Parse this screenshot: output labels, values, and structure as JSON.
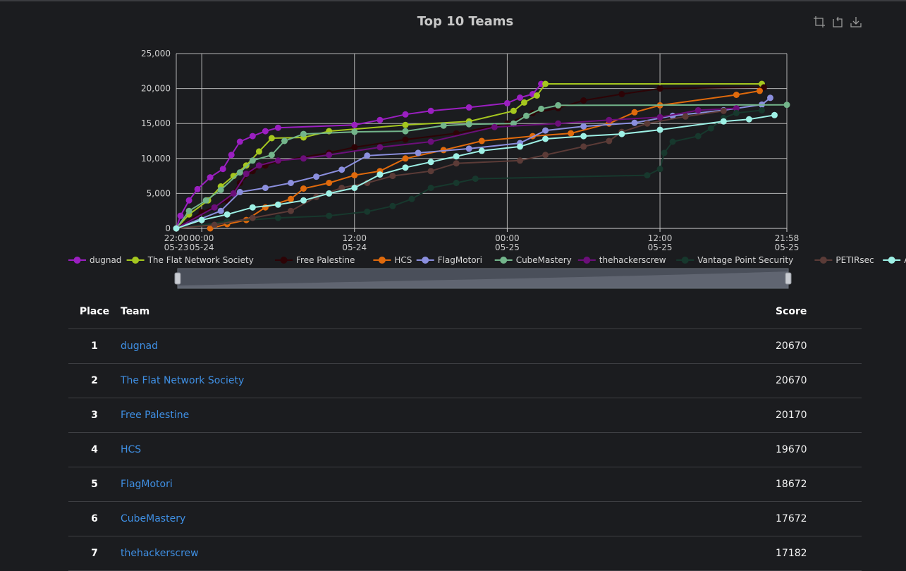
{
  "chart_data": {
    "type": "line",
    "title": "Top 10 Teams",
    "ylim": [
      0,
      25000
    ],
    "y_ticks": [
      "0",
      "5,000",
      "10,000",
      "15,000",
      "20,000",
      "25,000"
    ],
    "x_range": [
      "05-23 22:00",
      "05-25 21:58"
    ],
    "x_ticks": [
      {
        "at": "05-23 22:00",
        "time": "22:00",
        "date": "05-23"
      },
      {
        "at": "05-24 00:00",
        "time": "00:00",
        "date": "05-24"
      },
      {
        "at": "05-24 12:00",
        "time": "12:00",
        "date": "05-24"
      },
      {
        "at": "05-25 00:00",
        "time": "00:00",
        "date": "05-25"
      },
      {
        "at": "05-25 12:00",
        "time": "12:00",
        "date": "05-25"
      },
      {
        "at": "05-25 21:58",
        "time": "21:58",
        "date": "05-25"
      }
    ],
    "grid": true,
    "legend_position": "bottom",
    "series": [
      {
        "name": "dugnad",
        "color": "#9b1fc1",
        "points": [
          [
            "05-23 22:00",
            0
          ],
          [
            "05-23 22:20",
            1800
          ],
          [
            "05-23 23:00",
            4000
          ],
          [
            "05-23 23:40",
            5600
          ],
          [
            "05-24 00:40",
            7300
          ],
          [
            "05-24 01:40",
            8500
          ],
          [
            "05-24 02:20",
            10500
          ],
          [
            "05-24 03:00",
            12400
          ],
          [
            "05-24 04:00",
            13200
          ],
          [
            "05-24 05:00",
            13900
          ],
          [
            "05-24 06:00",
            14400
          ],
          [
            "05-24 12:00",
            14800
          ],
          [
            "05-24 14:00",
            15500
          ],
          [
            "05-24 16:00",
            16300
          ],
          [
            "05-24 18:00",
            16800
          ],
          [
            "05-24 21:00",
            17300
          ],
          [
            "05-25 00:00",
            17900
          ],
          [
            "05-25 01:00",
            18700
          ],
          [
            "05-25 02:00",
            19200
          ],
          [
            "05-25 02:40",
            20670
          ]
        ]
      },
      {
        "name": "The Flat Network Society",
        "color": "#a5c71f",
        "points": [
          [
            "05-23 22:00",
            0
          ],
          [
            "05-23 23:00",
            2000
          ],
          [
            "05-24 00:30",
            4000
          ],
          [
            "05-24 01:30",
            6000
          ],
          [
            "05-24 02:30",
            7500
          ],
          [
            "05-24 03:30",
            9000
          ],
          [
            "05-24 04:30",
            11000
          ],
          [
            "05-24 05:30",
            12900
          ],
          [
            "05-24 08:00",
            13000
          ],
          [
            "05-24 10:00",
            13900
          ],
          [
            "05-24 16:00",
            14800
          ],
          [
            "05-24 21:00",
            15300
          ],
          [
            "05-25 00:30",
            16800
          ],
          [
            "05-25 01:20",
            18000
          ],
          [
            "05-25 02:20",
            19000
          ],
          [
            "05-25 03:00",
            20670
          ],
          [
            "05-25 20:00",
            20670
          ]
        ]
      },
      {
        "name": "Free Palestine",
        "color": "#2d0306",
        "points": [
          [
            "05-23 22:00",
            0
          ],
          [
            "05-24 00:00",
            2300
          ],
          [
            "05-24 02:00",
            4000
          ],
          [
            "05-24 03:00",
            6500
          ],
          [
            "05-24 04:00",
            8200
          ],
          [
            "05-24 05:00",
            9000
          ],
          [
            "05-24 06:00",
            9600
          ],
          [
            "05-24 10:00",
            10800
          ],
          [
            "05-24 12:00",
            11600
          ],
          [
            "05-24 16:00",
            12700
          ],
          [
            "05-24 20:00",
            13600
          ],
          [
            "05-25 00:00",
            15000
          ],
          [
            "05-25 02:00",
            16500
          ],
          [
            "05-25 04:00",
            17200
          ],
          [
            "05-25 06:00",
            18300
          ],
          [
            "05-25 09:00",
            19200
          ],
          [
            "05-25 12:00",
            20000
          ],
          [
            "05-25 20:10",
            20170
          ]
        ]
      },
      {
        "name": "HCS",
        "color": "#e06a0c",
        "points": [
          [
            "05-24 00:40",
            0
          ],
          [
            "05-24 02:00",
            600
          ],
          [
            "05-24 03:30",
            1200
          ],
          [
            "05-24 05:00",
            3000
          ],
          [
            "05-24 07:00",
            4200
          ],
          [
            "05-24 08:00",
            5700
          ],
          [
            "05-24 10:00",
            6500
          ],
          [
            "05-24 12:00",
            7600
          ],
          [
            "05-24 14:00",
            8200
          ],
          [
            "05-24 16:00",
            10000
          ],
          [
            "05-24 19:00",
            11200
          ],
          [
            "05-24 22:00",
            12500
          ],
          [
            "05-25 02:00",
            13200
          ],
          [
            "05-25 05:00",
            13600
          ],
          [
            "05-25 08:00",
            15000
          ],
          [
            "05-25 10:00",
            16600
          ],
          [
            "05-25 12:00",
            17600
          ],
          [
            "05-25 18:00",
            19100
          ],
          [
            "05-25 19:50",
            19670
          ]
        ]
      },
      {
        "name": "FlagMotori",
        "color": "#8b8fde",
        "points": [
          [
            "05-23 22:00",
            0
          ],
          [
            "05-24 01:30",
            2500
          ],
          [
            "05-24 03:00",
            5200
          ],
          [
            "05-24 05:00",
            5800
          ],
          [
            "05-24 07:00",
            6500
          ],
          [
            "05-24 09:00",
            7400
          ],
          [
            "05-24 11:00",
            8400
          ],
          [
            "05-24 13:00",
            10400
          ],
          [
            "05-24 17:00",
            10800
          ],
          [
            "05-24 21:00",
            11400
          ],
          [
            "05-25 01:00",
            12200
          ],
          [
            "05-25 03:00",
            14000
          ],
          [
            "05-25 06:00",
            14600
          ],
          [
            "05-25 10:00",
            15100
          ],
          [
            "05-25 13:00",
            16100
          ],
          [
            "05-25 17:00",
            16900
          ],
          [
            "05-25 20:00",
            17700
          ],
          [
            "05-25 20:40",
            18672
          ]
        ]
      },
      {
        "name": "CubeMastery",
        "color": "#73b58b",
        "points": [
          [
            "05-23 22:00",
            0
          ],
          [
            "05-23 23:00",
            2500
          ],
          [
            "05-24 00:20",
            4000
          ],
          [
            "05-24 01:30",
            5500
          ],
          [
            "05-24 03:00",
            8000
          ],
          [
            "05-24 04:00",
            9700
          ],
          [
            "05-24 05:30",
            10500
          ],
          [
            "05-24 06:30",
            12500
          ],
          [
            "05-24 08:00",
            13500
          ],
          [
            "05-24 12:00",
            13800
          ],
          [
            "05-24 16:00",
            13900
          ],
          [
            "05-24 19:00",
            14700
          ],
          [
            "05-24 21:00",
            14900
          ],
          [
            "05-25 00:30",
            15000
          ],
          [
            "05-25 01:30",
            16100
          ],
          [
            "05-25 02:40",
            17100
          ],
          [
            "05-25 04:00",
            17600
          ],
          [
            "05-25 21:58",
            17672
          ]
        ]
      },
      {
        "name": "thehackerscrew",
        "color": "#6c0f7a",
        "points": [
          [
            "05-23 22:00",
            0
          ],
          [
            "05-24 01:00",
            3000
          ],
          [
            "05-24 02:30",
            5000
          ],
          [
            "05-24 03:30",
            7800
          ],
          [
            "05-24 04:30",
            9000
          ],
          [
            "05-24 06:00",
            9700
          ],
          [
            "05-24 08:00",
            10000
          ],
          [
            "05-24 10:00",
            10500
          ],
          [
            "05-24 14:00",
            11600
          ],
          [
            "05-24 18:00",
            12400
          ],
          [
            "05-24 23:00",
            14500
          ],
          [
            "05-25 04:00",
            15000
          ],
          [
            "05-25 08:00",
            15500
          ],
          [
            "05-25 12:00",
            15900
          ],
          [
            "05-25 15:00",
            16900
          ],
          [
            "05-25 18:00",
            17182
          ]
        ]
      },
      {
        "name": "Vantage Point Security",
        "color": "#17382d",
        "points": [
          [
            "05-23 22:00",
            0
          ],
          [
            "05-24 02:00",
            1000
          ],
          [
            "05-24 06:00",
            1500
          ],
          [
            "05-24 10:00",
            1800
          ],
          [
            "05-24 13:00",
            2400
          ],
          [
            "05-24 15:00",
            3200
          ],
          [
            "05-24 16:30",
            4200
          ],
          [
            "05-24 18:00",
            5800
          ],
          [
            "05-24 20:00",
            6500
          ],
          [
            "05-24 21:30",
            7100
          ],
          [
            "05-25 11:00",
            7600
          ],
          [
            "05-25 12:00",
            8500
          ],
          [
            "05-25 12:20",
            10800
          ],
          [
            "05-25 13:00",
            12400
          ],
          [
            "05-25 15:00",
            13200
          ],
          [
            "05-25 16:00",
            14300
          ],
          [
            "05-25 17:00",
            15800
          ],
          [
            "05-25 18:00",
            16500
          ],
          [
            "05-25 20:00",
            16900
          ]
        ]
      },
      {
        "name": "PETIRsec",
        "color": "#5b3b37",
        "points": [
          [
            "05-23 22:00",
            0
          ],
          [
            "05-24 01:00",
            500
          ],
          [
            "05-24 04:00",
            1500
          ],
          [
            "05-24 07:00",
            2500
          ],
          [
            "05-24 09:00",
            4500
          ],
          [
            "05-24 11:00",
            5800
          ],
          [
            "05-24 13:00",
            6500
          ],
          [
            "05-24 15:00",
            7500
          ],
          [
            "05-24 18:00",
            8200
          ],
          [
            "05-24 20:00",
            9300
          ],
          [
            "05-25 01:00",
            9700
          ],
          [
            "05-25 03:00",
            10500
          ],
          [
            "05-25 06:00",
            11700
          ],
          [
            "05-25 08:00",
            12500
          ],
          [
            "05-25 09:00",
            13800
          ],
          [
            "05-25 11:00",
            15000
          ],
          [
            "05-25 14:00",
            16000
          ],
          [
            "05-25 17:00",
            16800
          ]
        ]
      },
      {
        "name": "ARESx",
        "color": "#9ef1e6",
        "points": [
          [
            "05-23 22:00",
            0
          ],
          [
            "05-24 00:00",
            1200
          ],
          [
            "05-24 02:00",
            2000
          ],
          [
            "05-24 04:00",
            3000
          ],
          [
            "05-24 06:00",
            3400
          ],
          [
            "05-24 08:00",
            4000
          ],
          [
            "05-24 10:00",
            5000
          ],
          [
            "05-24 12:00",
            5800
          ],
          [
            "05-24 14:00",
            7700
          ],
          [
            "05-24 16:00",
            8700
          ],
          [
            "05-24 18:00",
            9500
          ],
          [
            "05-24 20:00",
            10300
          ],
          [
            "05-24 22:00",
            11100
          ],
          [
            "05-25 01:00",
            11700
          ],
          [
            "05-25 03:00",
            12800
          ],
          [
            "05-25 06:00",
            13200
          ],
          [
            "05-25 09:00",
            13500
          ],
          [
            "05-25 12:00",
            14100
          ],
          [
            "05-25 17:00",
            15300
          ],
          [
            "05-25 19:00",
            15600
          ],
          [
            "05-25 21:00",
            16200
          ]
        ]
      }
    ]
  },
  "toolbox": [
    "zoom-icon",
    "restore-icon",
    "download-icon"
  ],
  "table": {
    "headers": {
      "place": "Place",
      "team": "Team",
      "score": "Score"
    },
    "rows": [
      {
        "place": "1",
        "team": "dugnad",
        "score": "20670"
      },
      {
        "place": "2",
        "team": "The Flat Network Society",
        "score": "20670"
      },
      {
        "place": "3",
        "team": "Free Palestine",
        "score": "20170"
      },
      {
        "place": "4",
        "team": "HCS",
        "score": "19670"
      },
      {
        "place": "5",
        "team": "FlagMotori",
        "score": "18672"
      },
      {
        "place": "6",
        "team": "CubeMastery",
        "score": "17672"
      },
      {
        "place": "7",
        "team": "thehackerscrew",
        "score": "17182"
      }
    ]
  }
}
